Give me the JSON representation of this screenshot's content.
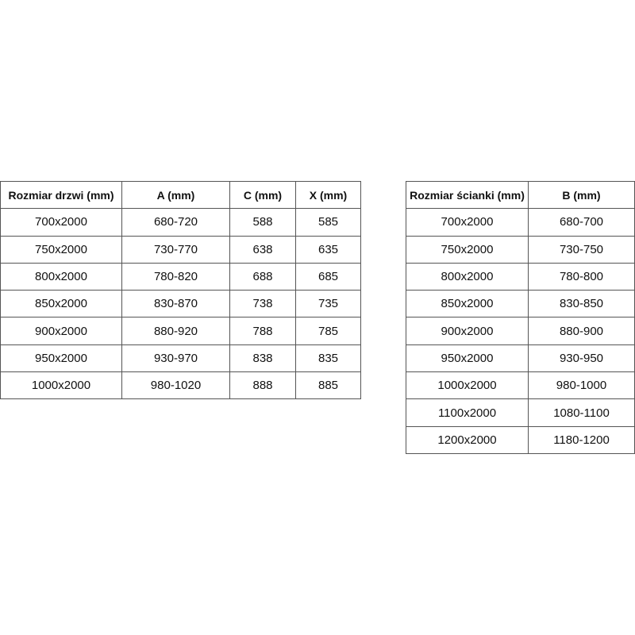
{
  "door_table": {
    "headers": [
      "Rozmiar drzwi (mm)",
      "A (mm)",
      "C (mm)",
      "X (mm)"
    ],
    "rows": [
      [
        "700x2000",
        "680-720",
        "588",
        "585"
      ],
      [
        "750x2000",
        "730-770",
        "638",
        "635"
      ],
      [
        "800x2000",
        "780-820",
        "688",
        "685"
      ],
      [
        "850x2000",
        "830-870",
        "738",
        "735"
      ],
      [
        "900x2000",
        "880-920",
        "788",
        "785"
      ],
      [
        "950x2000",
        "930-970",
        "838",
        "835"
      ],
      [
        "1000x2000",
        "980-1020",
        "888",
        "885"
      ]
    ]
  },
  "wall_table": {
    "headers": [
      "Rozmiar ścianki (mm)",
      "B (mm)"
    ],
    "rows": [
      [
        "700x2000",
        "680-700"
      ],
      [
        "750x2000",
        "730-750"
      ],
      [
        "800x2000",
        "780-800"
      ],
      [
        "850x2000",
        "830-850"
      ],
      [
        "900x2000",
        "880-900"
      ],
      [
        "950x2000",
        "930-950"
      ],
      [
        "1000x2000",
        "980-1000"
      ],
      [
        "1100x2000",
        "1080-1100"
      ],
      [
        "1200x2000",
        "1180-1200"
      ]
    ]
  }
}
